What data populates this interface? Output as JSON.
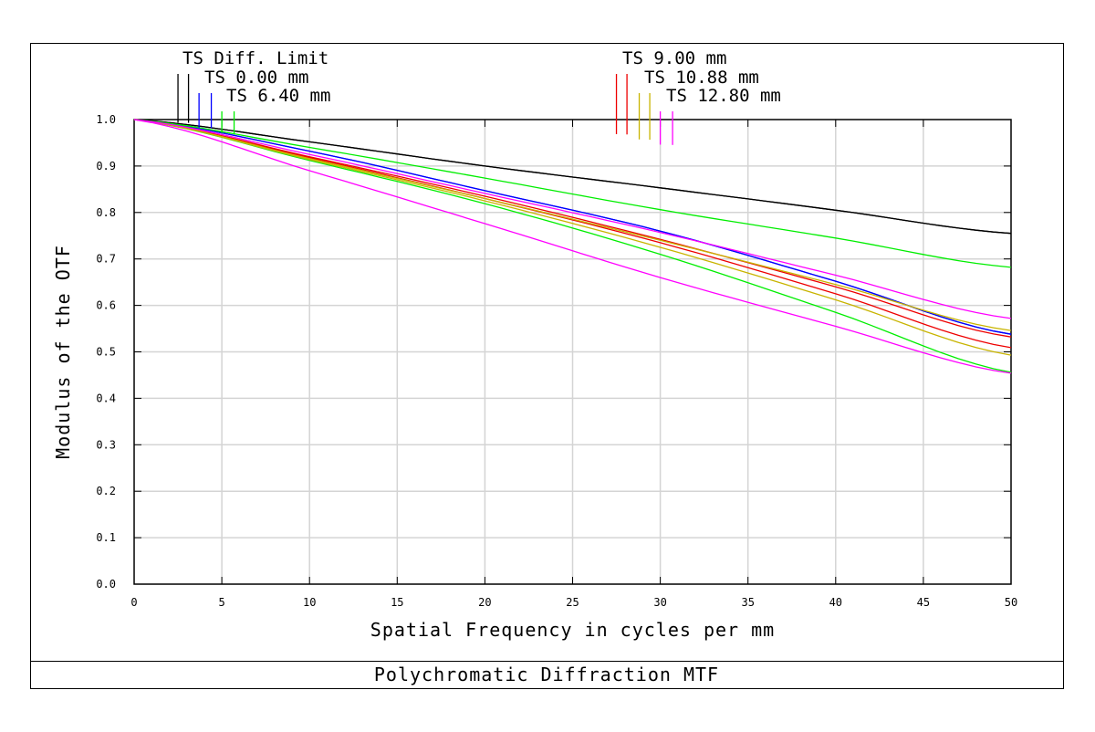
{
  "chart_data": {
    "type": "line",
    "title": "Polychromatic Diffraction MTF",
    "xlabel": "Spatial Frequency in cycles per mm",
    "ylabel": "Modulus of the OTF",
    "xlim": [
      0,
      50
    ],
    "ylim": [
      0,
      1
    ],
    "grid": true,
    "x_ticks": [
      "0",
      "5",
      "10",
      "15",
      "20",
      "25",
      "30",
      "35",
      "40",
      "45",
      "50"
    ],
    "y_ticks": [
      "0.0",
      "0.1",
      "0.2",
      "0.3",
      "0.4",
      "0.5",
      "0.6",
      "0.7",
      "0.8",
      "0.9",
      "1.0"
    ],
    "x": [
      0,
      10,
      20,
      30,
      40,
      50
    ],
    "legend": [
      {
        "label": "TS Diff. Limit",
        "color": "#000000",
        "marker_x": [
          2.5,
          3.1
        ]
      },
      {
        "label": "TS 0.00 mm",
        "color": "#0000ff",
        "marker_x": [
          3.7,
          4.4
        ]
      },
      {
        "label": "TS 6.40 mm",
        "color": "#00ee00",
        "marker_x": [
          5.0,
          5.7
        ]
      },
      {
        "label": "TS 9.00 mm",
        "color": "#ee0000",
        "marker_x": [
          27.5,
          28.1
        ]
      },
      {
        "label": "TS 10.88 mm",
        "color": "#c8b400",
        "marker_x": [
          28.8,
          29.4
        ]
      },
      {
        "label": "TS 12.80 mm",
        "color": "#ff00ff",
        "marker_x": [
          30.0,
          30.7
        ]
      }
    ],
    "series": [
      {
        "name": "Diff. Limit T",
        "color": "#000000",
        "values": [
          1.0,
          0.952,
          0.9,
          0.853,
          0.805,
          0.755
        ]
      },
      {
        "name": "Diff. Limit S",
        "color": "#000000",
        "values": [
          1.0,
          0.952,
          0.9,
          0.853,
          0.805,
          0.755
        ]
      },
      {
        "name": "0.00 mm T",
        "color": "#0000ff",
        "values": [
          1.0,
          0.932,
          0.847,
          0.76,
          0.652,
          0.538
        ]
      },
      {
        "name": "0.00 mm S",
        "color": "#0000ff",
        "values": [
          1.0,
          0.932,
          0.847,
          0.76,
          0.652,
          0.538
        ]
      },
      {
        "name": "6.40 mm T",
        "color": "#00ee00",
        "values": [
          1.0,
          0.94,
          0.874,
          0.806,
          0.745,
          0.682
        ]
      },
      {
        "name": "6.40 mm S",
        "color": "#00ee00",
        "values": [
          1.0,
          0.912,
          0.819,
          0.71,
          0.585,
          0.456
        ]
      },
      {
        "name": "9.00 mm T",
        "color": "#ee0000",
        "values": [
          1.0,
          0.92,
          0.835,
          0.742,
          0.64,
          0.532
        ]
      },
      {
        "name": "9.00 mm S",
        "color": "#ee0000",
        "values": [
          1.0,
          0.918,
          0.83,
          0.735,
          0.625,
          0.509
        ]
      },
      {
        "name": "10.88 mm T",
        "color": "#c8b400",
        "values": [
          1.0,
          0.916,
          0.83,
          0.74,
          0.645,
          0.546
        ]
      },
      {
        "name": "10.88 mm S",
        "color": "#c8b400",
        "values": [
          1.0,
          0.914,
          0.825,
          0.725,
          0.612,
          0.493
        ]
      },
      {
        "name": "12.80 mm T",
        "color": "#ff00ff",
        "values": [
          1.0,
          0.925,
          0.841,
          0.757,
          0.665,
          0.572
        ]
      },
      {
        "name": "12.80 mm S",
        "color": "#ff00ff",
        "values": [
          1.0,
          0.89,
          0.776,
          0.66,
          0.555,
          0.454
        ]
      }
    ]
  }
}
